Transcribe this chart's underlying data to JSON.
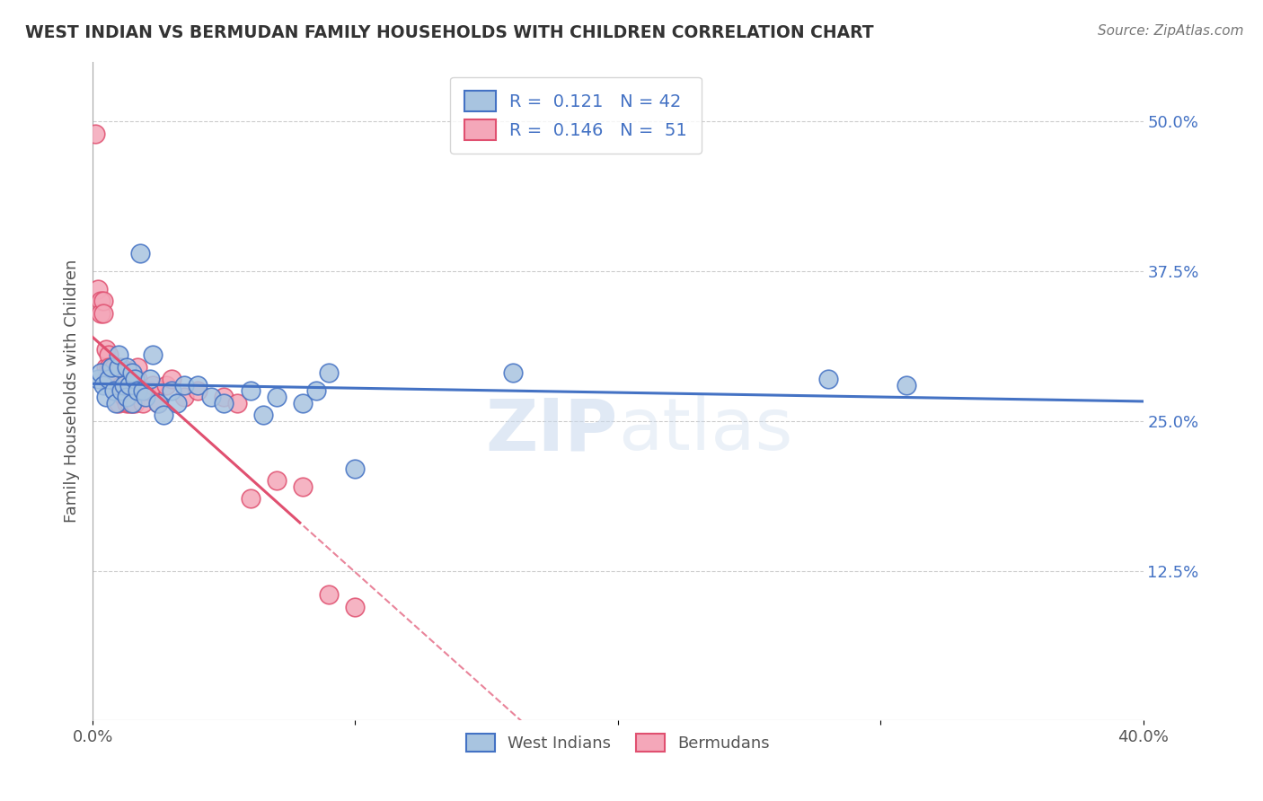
{
  "title": "WEST INDIAN VS BERMUDAN FAMILY HOUSEHOLDS WITH CHILDREN CORRELATION CHART",
  "source": "Source: ZipAtlas.com",
  "ylabel": "Family Households with Children",
  "xlim": [
    0.0,
    0.4
  ],
  "ylim": [
    0.0,
    0.55
  ],
  "xticks": [
    0.0,
    0.1,
    0.2,
    0.3,
    0.4
  ],
  "xticklabels": [
    "0.0%",
    "",
    "",
    "",
    "40.0%"
  ],
  "yticks_right": [
    0.125,
    0.25,
    0.375,
    0.5
  ],
  "ytick_labels_right": [
    "12.5%",
    "25.0%",
    "37.5%",
    "50.0%"
  ],
  "legend_r1": "R =  0.121   N = 42",
  "legend_r2": "R =  0.146   N =  51",
  "west_indian_color": "#a8c4e0",
  "bermudan_color": "#f4a7b9",
  "trend_blue": "#4472c4",
  "trend_pink": "#e05070",
  "watermark_zip": "ZIP",
  "watermark_atlas": "atlas",
  "bottom_legend_west": "West Indians",
  "bottom_legend_berm": "Bermudans",
  "west_indian_x": [
    0.002,
    0.003,
    0.004,
    0.005,
    0.006,
    0.007,
    0.008,
    0.009,
    0.01,
    0.01,
    0.011,
    0.012,
    0.013,
    0.013,
    0.014,
    0.015,
    0.015,
    0.016,
    0.017,
    0.018,
    0.019,
    0.02,
    0.022,
    0.023,
    0.025,
    0.027,
    0.03,
    0.032,
    0.035,
    0.04,
    0.045,
    0.05,
    0.06,
    0.065,
    0.07,
    0.08,
    0.085,
    0.09,
    0.1,
    0.16,
    0.28,
    0.31
  ],
  "west_indian_y": [
    0.285,
    0.29,
    0.28,
    0.27,
    0.285,
    0.295,
    0.275,
    0.265,
    0.295,
    0.305,
    0.275,
    0.28,
    0.295,
    0.27,
    0.28,
    0.29,
    0.265,
    0.285,
    0.275,
    0.39,
    0.275,
    0.27,
    0.285,
    0.305,
    0.265,
    0.255,
    0.275,
    0.265,
    0.28,
    0.28,
    0.27,
    0.265,
    0.275,
    0.255,
    0.27,
    0.265,
    0.275,
    0.29,
    0.21,
    0.29,
    0.285,
    0.28
  ],
  "bermudan_x": [
    0.001,
    0.002,
    0.003,
    0.003,
    0.004,
    0.004,
    0.005,
    0.005,
    0.005,
    0.006,
    0.006,
    0.007,
    0.007,
    0.008,
    0.008,
    0.008,
    0.009,
    0.009,
    0.01,
    0.01,
    0.011,
    0.011,
    0.012,
    0.012,
    0.013,
    0.013,
    0.014,
    0.014,
    0.015,
    0.015,
    0.016,
    0.016,
    0.017,
    0.017,
    0.018,
    0.019,
    0.02,
    0.022,
    0.023,
    0.025,
    0.028,
    0.03,
    0.035,
    0.04,
    0.05,
    0.055,
    0.06,
    0.07,
    0.08,
    0.09,
    0.1
  ],
  "bermudan_y": [
    0.49,
    0.36,
    0.35,
    0.34,
    0.35,
    0.34,
    0.31,
    0.295,
    0.285,
    0.305,
    0.295,
    0.285,
    0.295,
    0.28,
    0.285,
    0.295,
    0.275,
    0.285,
    0.275,
    0.265,
    0.28,
    0.295,
    0.27,
    0.275,
    0.265,
    0.285,
    0.265,
    0.28,
    0.275,
    0.265,
    0.275,
    0.265,
    0.285,
    0.295,
    0.275,
    0.265,
    0.275,
    0.275,
    0.28,
    0.265,
    0.28,
    0.285,
    0.27,
    0.275,
    0.27,
    0.265,
    0.185,
    0.2,
    0.195,
    0.105,
    0.095
  ]
}
